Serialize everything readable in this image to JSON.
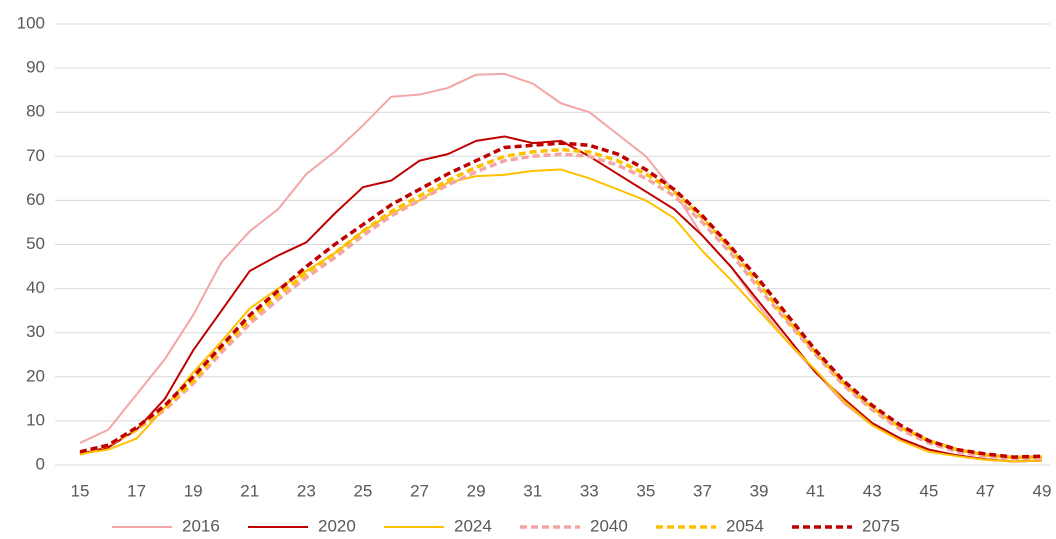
{
  "chart_data": {
    "type": "line",
    "x": [
      15,
      16,
      17,
      18,
      19,
      20,
      21,
      22,
      23,
      24,
      25,
      26,
      27,
      28,
      29,
      30,
      31,
      32,
      33,
      34,
      35,
      36,
      37,
      38,
      39,
      40,
      41,
      42,
      43,
      44,
      45,
      46,
      47,
      48,
      49
    ],
    "xlim": [
      15,
      49
    ],
    "xticks": [
      15,
      17,
      19,
      21,
      23,
      25,
      27,
      29,
      31,
      33,
      35,
      37,
      39,
      41,
      43,
      45,
      47,
      49
    ],
    "ylim": [
      0,
      100
    ],
    "yticks": [
      0,
      10,
      20,
      30,
      40,
      50,
      60,
      70,
      80,
      90,
      100
    ],
    "grid": true,
    "legend": "bottom",
    "series": [
      {
        "name": "2016",
        "color": "#f4a6a6",
        "dashed": false,
        "values": [
          5,
          8,
          16,
          24,
          34,
          46,
          53,
          58,
          66,
          71,
          77,
          83.5,
          84,
          85.5,
          88.5,
          88.7,
          86.5,
          82,
          80,
          75,
          70,
          62,
          52,
          45,
          36,
          28,
          21,
          14,
          9,
          6,
          3.5,
          2,
          1.2,
          0.8,
          1
        ]
      },
      {
        "name": "2020",
        "color": "#c00000",
        "dashed": false,
        "values": [
          2.5,
          4,
          8,
          15,
          26,
          35,
          44,
          47.5,
          50.5,
          57,
          63,
          64.5,
          69,
          70.5,
          73.5,
          74.5,
          73,
          73.5,
          70,
          66,
          62,
          58,
          52,
          45,
          37,
          29,
          21,
          15,
          9.5,
          6,
          3.5,
          2.2,
          1.3,
          0.8,
          1
        ]
      },
      {
        "name": "2024",
        "color": "#ffc000",
        "dashed": false,
        "values": [
          2.5,
          3.5,
          6,
          13,
          21,
          28,
          35.5,
          40,
          44,
          48,
          53,
          57,
          60,
          64,
          65.5,
          65.8,
          66.7,
          67,
          65,
          62.5,
          60,
          56,
          48.5,
          42,
          35,
          28,
          21.5,
          14.5,
          9,
          5.5,
          3,
          2,
          1.2,
          0.8,
          1
        ]
      },
      {
        "name": "2040",
        "color": "#f4a6a6",
        "dashed": true,
        "values": [
          2.5,
          4.5,
          8,
          12.5,
          18.5,
          25.5,
          32,
          37.5,
          42.5,
          47,
          52,
          56.5,
          60,
          63.5,
          66.5,
          69,
          70,
          70.5,
          70,
          68,
          65,
          61,
          55,
          48,
          40,
          32.5,
          25,
          18,
          12.5,
          8,
          5,
          3,
          2,
          1.5,
          1.5
        ]
      },
      {
        "name": "2054",
        "color": "#ffc000",
        "dashed": true,
        "values": [
          2.5,
          4.5,
          8,
          13,
          19,
          26.5,
          33,
          38.5,
          43.5,
          48,
          53,
          57.5,
          61,
          64.5,
          67.5,
          70,
          71,
          71.5,
          71,
          69,
          66,
          62,
          56,
          49,
          41,
          33,
          25.5,
          18.5,
          13,
          8.5,
          5.5,
          3.5,
          2.3,
          1.7,
          1.8
        ]
      },
      {
        "name": "2075",
        "color": "#c00000",
        "dashed": true,
        "values": [
          3,
          4.5,
          8.5,
          13.5,
          20,
          27,
          34,
          39.5,
          45,
          50,
          54.5,
          59,
          62.5,
          66,
          69,
          72,
          72.5,
          73,
          72.5,
          70.5,
          67,
          62.5,
          56.5,
          49.5,
          42,
          34,
          26,
          19,
          13.5,
          9,
          5.5,
          3.5,
          2.5,
          1.8,
          2
        ]
      }
    ]
  }
}
